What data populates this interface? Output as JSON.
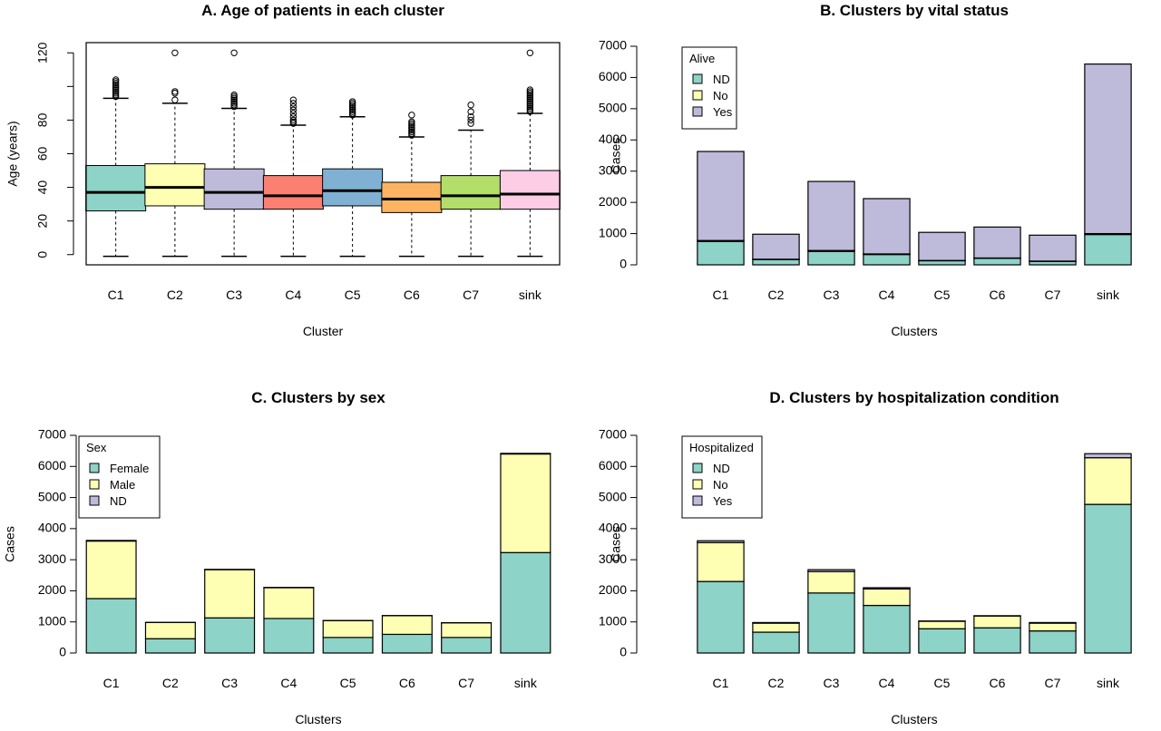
{
  "palette": {
    "teal": "#8dd3c7",
    "yellow": "#ffffb3",
    "lavender": "#bebada",
    "salmon": "#fb8072",
    "blue": "#80b1d3",
    "orange": "#fdb462",
    "green": "#b3de69",
    "pink": "#fccde5"
  },
  "chart_data": [
    {
      "type": "boxplot",
      "title": "A. Age of patients in each cluster",
      "xlabel": "Cluster",
      "ylabel": "Age (years)",
      "ylim": [
        -5,
        125
      ],
      "yticks": [
        0,
        20,
        40,
        60,
        80,
        120
      ],
      "categories": [
        "C1",
        "C2",
        "C3",
        "C4",
        "C5",
        "C6",
        "C7",
        "sink"
      ],
      "colors": [
        "#8dd3c7",
        "#ffffb3",
        "#bebada",
        "#fb8072",
        "#80b1d3",
        "#fdb462",
        "#b3de69",
        "#fccde5"
      ],
      "boxes": [
        {
          "min": -1,
          "q1": 26,
          "median": 37,
          "q3": 53,
          "max": 93,
          "outliers": [
            94,
            95,
            96,
            97,
            98,
            99,
            100,
            101,
            102,
            103,
            104
          ]
        },
        {
          "min": -1,
          "q1": 29,
          "median": 40,
          "q3": 54,
          "max": 90,
          "outliers": [
            92,
            96,
            97,
            120
          ]
        },
        {
          "min": -1,
          "q1": 27,
          "median": 37,
          "q3": 51,
          "max": 87,
          "outliers": [
            88,
            89,
            90,
            91,
            92,
            93,
            94,
            95,
            120
          ]
        },
        {
          "min": -1,
          "q1": 27,
          "median": 35,
          "q3": 47,
          "max": 77,
          "outliers": [
            78,
            79,
            80,
            82,
            84,
            86,
            88,
            90,
            92
          ]
        },
        {
          "min": -1,
          "q1": 29,
          "median": 38,
          "q3": 51,
          "max": 82,
          "outliers": [
            83,
            84,
            85,
            86,
            87,
            88,
            89,
            90,
            91
          ]
        },
        {
          "min": -1,
          "q1": 25,
          "median": 33,
          "q3": 43,
          "max": 70,
          "outliers": [
            71,
            72,
            73,
            74,
            75,
            76,
            77,
            78,
            79,
            83
          ]
        },
        {
          "min": -1,
          "q1": 27,
          "median": 35,
          "q3": 47,
          "max": 74,
          "outliers": [
            78,
            80,
            82,
            85,
            89
          ]
        },
        {
          "min": -1,
          "q1": 27,
          "median": 36,
          "q3": 50,
          "max": 84,
          "outliers": [
            85,
            86,
            87,
            88,
            89,
            90,
            91,
            92,
            93,
            94,
            95,
            96,
            97,
            98,
            120
          ]
        }
      ]
    },
    {
      "type": "bar",
      "stacked": true,
      "title": "B. Clusters by vital status",
      "xlabel": "Clusters",
      "ylabel": "Cases",
      "ylim": [
        0,
        7000
      ],
      "yticks": [
        0,
        1000,
        2000,
        3000,
        4000,
        5000,
        6000,
        7000
      ],
      "categories": [
        "C1",
        "C2",
        "C3",
        "C4",
        "C5",
        "C6",
        "C7",
        "sink"
      ],
      "legend_title": "Alive",
      "legend_position": "top-left",
      "series": [
        {
          "name": "ND",
          "color": "#8dd3c7",
          "values": [
            750,
            170,
            430,
            330,
            130,
            210,
            110,
            970
          ]
        },
        {
          "name": "No",
          "color": "#ffffb3",
          "values": [
            30,
            10,
            30,
            20,
            10,
            10,
            10,
            30
          ]
        },
        {
          "name": "Yes",
          "color": "#bebada",
          "values": [
            2850,
            800,
            2210,
            1770,
            900,
            990,
            830,
            5430
          ]
        }
      ]
    },
    {
      "type": "bar",
      "stacked": true,
      "title": "C. Clusters by sex",
      "xlabel": "Clusters",
      "ylabel": "Cases",
      "ylim": [
        0,
        7000
      ],
      "yticks": [
        0,
        1000,
        2000,
        3000,
        4000,
        5000,
        6000,
        7000
      ],
      "categories": [
        "C1",
        "C2",
        "C3",
        "C4",
        "C5",
        "C6",
        "C7",
        "sink"
      ],
      "legend_title": "Sex",
      "legend_position": "top-left",
      "series": [
        {
          "name": "Female",
          "color": "#8dd3c7",
          "values": [
            1750,
            460,
            1130,
            1110,
            500,
            600,
            500,
            3230
          ]
        },
        {
          "name": "Male",
          "color": "#ffffb3",
          "values": [
            1850,
            520,
            1550,
            990,
            540,
            600,
            470,
            3170
          ]
        },
        {
          "name": "ND",
          "color": "#bebada",
          "values": [
            20,
            5,
            10,
            10,
            5,
            5,
            5,
            20
          ]
        }
      ]
    },
    {
      "type": "bar",
      "stacked": true,
      "title": "D. Clusters by hospitalization condition",
      "xlabel": "Clusters",
      "ylabel": "Cases",
      "ylim": [
        0,
        7000
      ],
      "yticks": [
        0,
        1000,
        2000,
        3000,
        4000,
        5000,
        6000,
        7000
      ],
      "categories": [
        "C1",
        "C2",
        "C3",
        "C4",
        "C5",
        "C6",
        "C7",
        "sink"
      ],
      "legend_title": "Hospitalized",
      "legend_position": "top-left",
      "series": [
        {
          "name": "ND",
          "color": "#8dd3c7",
          "values": [
            2300,
            670,
            1930,
            1530,
            780,
            810,
            710,
            4780
          ]
        },
        {
          "name": "No",
          "color": "#ffffb3",
          "values": [
            1250,
            290,
            690,
            530,
            240,
            380,
            250,
            1500
          ]
        },
        {
          "name": "Yes",
          "color": "#bebada",
          "values": [
            60,
            20,
            60,
            40,
            10,
            10,
            20,
            130
          ]
        }
      ]
    }
  ]
}
